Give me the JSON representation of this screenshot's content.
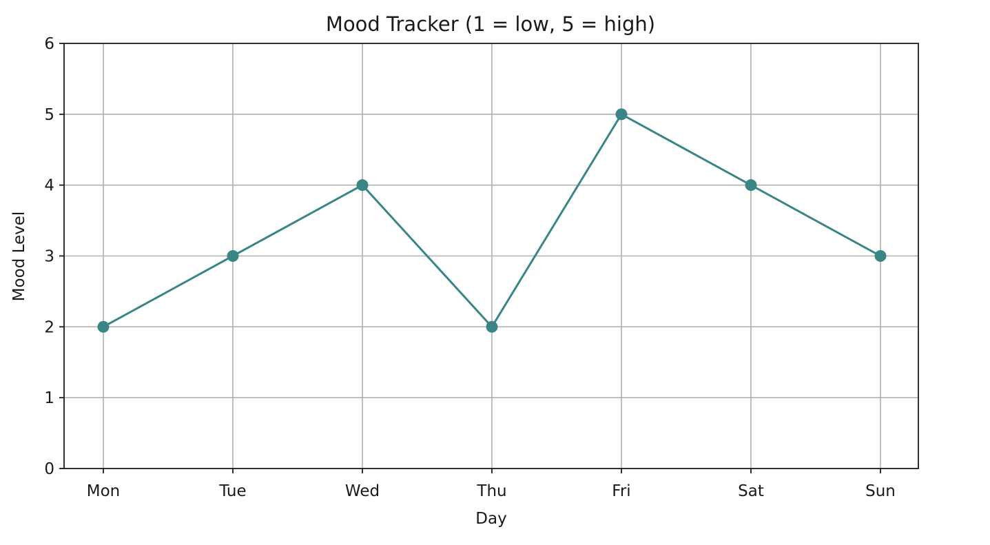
{
  "chart_data": {
    "type": "line",
    "title": "Mood Tracker (1 = low, 5 = high)",
    "xlabel": "Day",
    "ylabel": "Mood Level",
    "categories": [
      "Mon",
      "Tue",
      "Wed",
      "Thu",
      "Fri",
      "Sat",
      "Sun"
    ],
    "series": [
      {
        "values": [
          2,
          3,
          4,
          2,
          5,
          4,
          3
        ],
        "color": "#3a8585",
        "marker": "circle"
      }
    ],
    "ylim": [
      0,
      6
    ],
    "yticks": [
      "0",
      "1",
      "2",
      "3",
      "4",
      "5",
      "6"
    ],
    "grid": true
  }
}
